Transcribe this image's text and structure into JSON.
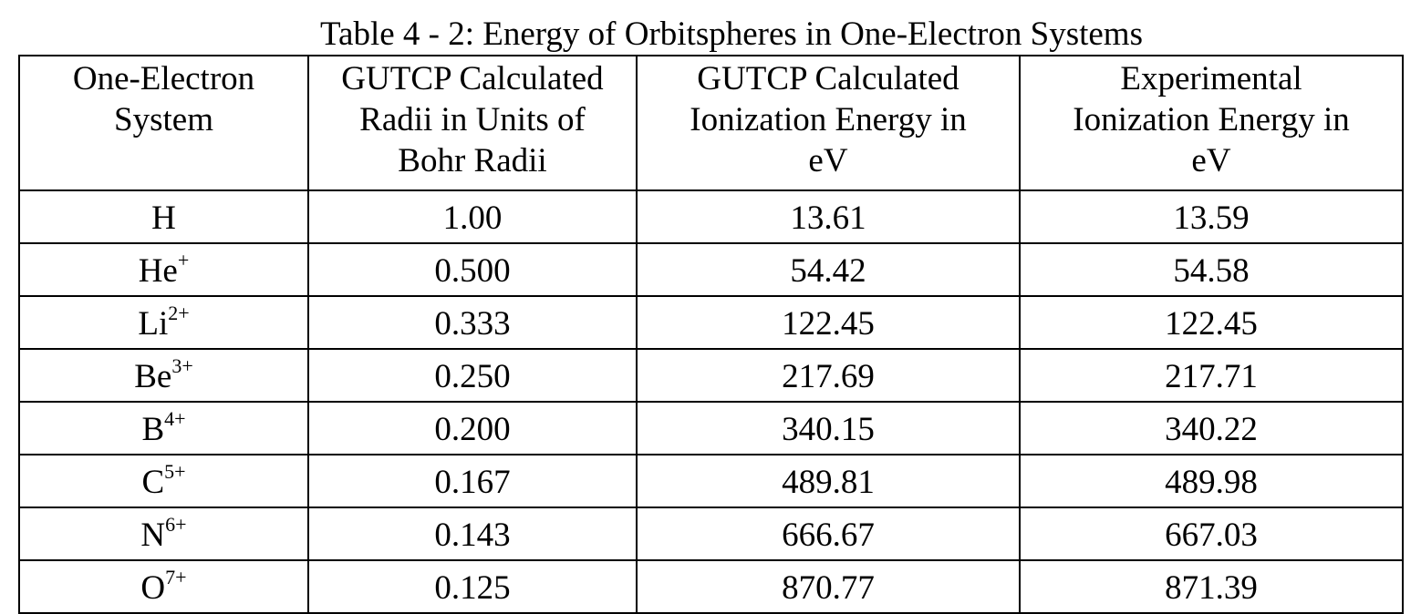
{
  "caption": "Table 4 - 2: Energy of Orbitspheres in One-Electron Systems",
  "columns": [
    {
      "line1": "One-Electron",
      "line2": "System",
      "line3": ""
    },
    {
      "line1": "GUTCP Calculated",
      "line2": "Radii in Units of",
      "line3": "Bohr Radii"
    },
    {
      "line1": "GUTCP Calculated",
      "line2": "Ionization Energy in",
      "line3": "eV"
    },
    {
      "line1": "Experimental",
      "line2": "Ionization Energy in",
      "line3": "eV"
    }
  ],
  "rows": [
    {
      "base": "H",
      "charge": "",
      "radius": "1.00",
      "calc": "13.61",
      "exp": "13.59"
    },
    {
      "base": "He",
      "charge": "+",
      "radius": "0.500",
      "calc": "54.42",
      "exp": "54.58"
    },
    {
      "base": "Li",
      "charge": "2+",
      "radius": "0.333",
      "calc": "122.45",
      "exp": "122.45"
    },
    {
      "base": "Be",
      "charge": "3+",
      "radius": "0.250",
      "calc": "217.69",
      "exp": "217.71"
    },
    {
      "base": "B",
      "charge": "4+",
      "radius": "0.200",
      "calc": "340.15",
      "exp": "340.22"
    },
    {
      "base": "C",
      "charge": "5+",
      "radius": "0.167",
      "calc": "489.81",
      "exp": "489.98"
    },
    {
      "base": "N",
      "charge": "6+",
      "radius": "0.143",
      "calc": "666.67",
      "exp": "667.03"
    },
    {
      "base": "O",
      "charge": "7+",
      "radius": "0.125",
      "calc": "870.77",
      "exp": "871.39"
    }
  ]
}
